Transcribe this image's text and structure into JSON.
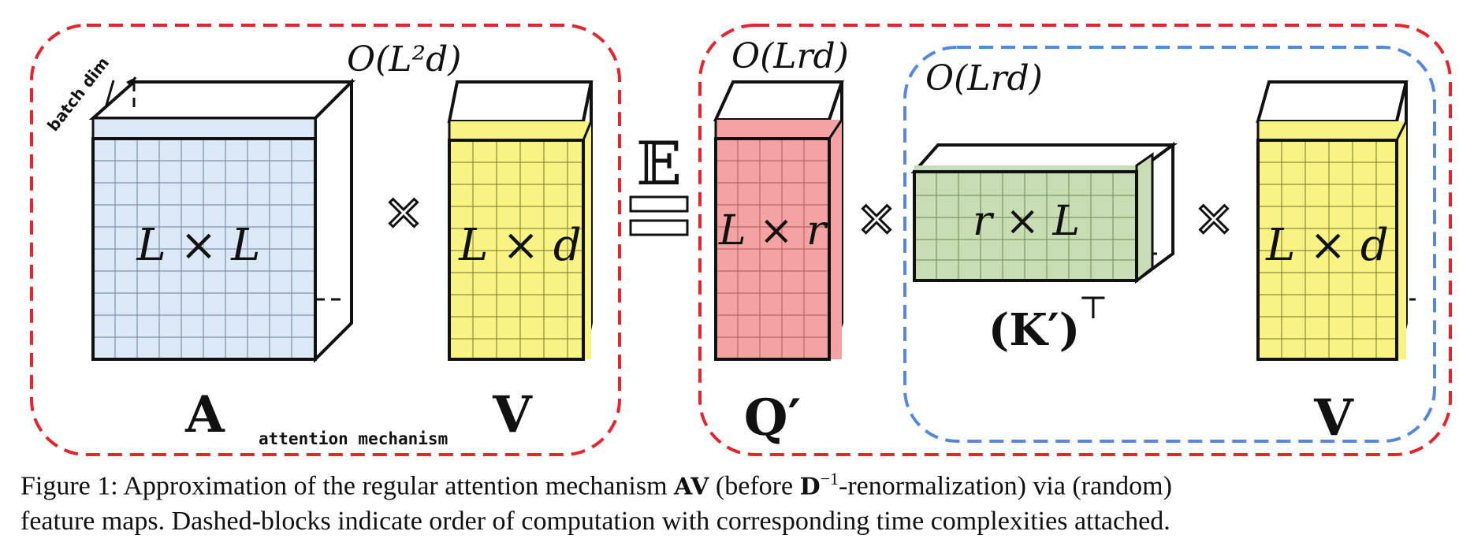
{
  "colors": {
    "red_dash": "#e4252c",
    "blue_dash": "#5588dd",
    "A_fill": "#dde8f6",
    "V_fill": "#f8f383",
    "Q_fill": "#f4a3a3",
    "K_fill": "#c8ddb4",
    "grid_line": "#7f93ad",
    "edge": "#111111"
  },
  "complexities": {
    "left_block": "O(L²d)",
    "right_block": "O(Lrd)",
    "inner_block": "O(Lrd)"
  },
  "batch_label": "batch dim",
  "matrices": {
    "A": {
      "name": "A",
      "dims": "L × L"
    },
    "V_left": {
      "name": "V",
      "dims": "L × d"
    },
    "Q": {
      "name": "Q′",
      "dims": "L × r"
    },
    "K": {
      "name": "(K′)",
      "superscript": "⊤",
      "dims": "r × L"
    },
    "V_right": {
      "name": "V",
      "dims": "L × d"
    }
  },
  "operators": {
    "times": "✕",
    "expectation": "𝔼"
  },
  "mechanism_label": "attention mechanism",
  "caption": {
    "figure_label": "Figure 1:",
    "text_1": "Approximation of the regular attention mechanism",
    "math_AV": "AV",
    "text_2": "(before",
    "math_D": "D",
    "math_D_exp": "−1",
    "text_3": "-renormalization) via (random)",
    "line_2": "feature maps. Dashed-blocks indicate order of computation with corresponding time complexities attached."
  }
}
